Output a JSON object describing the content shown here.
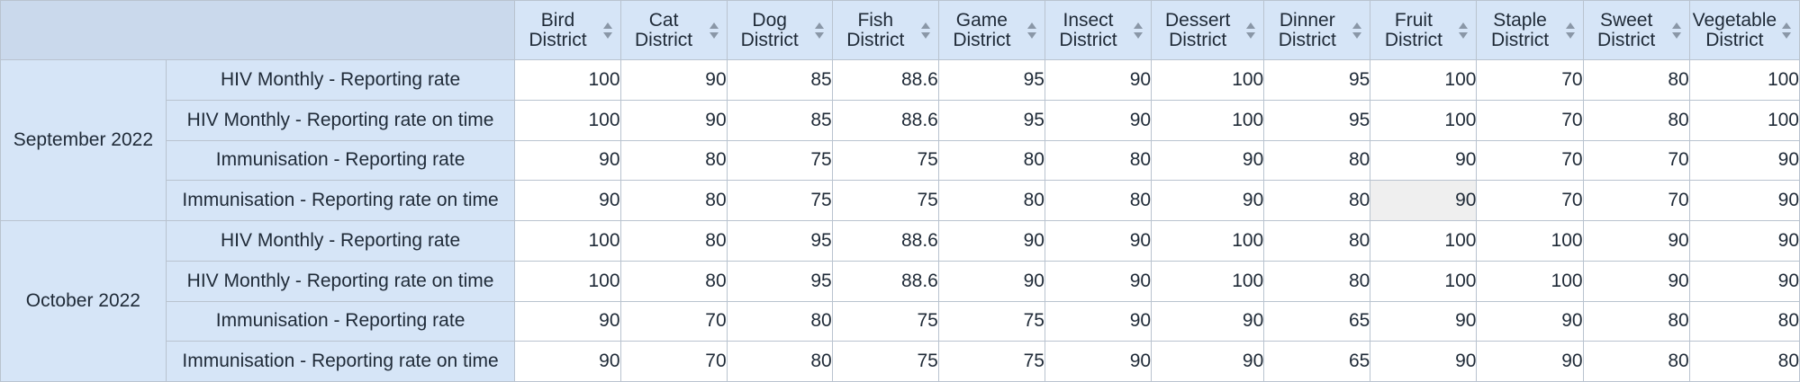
{
  "table": {
    "columns": [
      {
        "line1": "Bird",
        "line2": "District"
      },
      {
        "line1": "Cat",
        "line2": "District"
      },
      {
        "line1": "Dog",
        "line2": "District"
      },
      {
        "line1": "Fish",
        "line2": "District"
      },
      {
        "line1": "Game",
        "line2": "District"
      },
      {
        "line1": "Insect",
        "line2": "District"
      },
      {
        "line1": "Dessert",
        "line2": "District"
      },
      {
        "line1": "Dinner",
        "line2": "District"
      },
      {
        "line1": "Fruit",
        "line2": "District"
      },
      {
        "line1": "Staple",
        "line2": "District"
      },
      {
        "line1": "Sweet",
        "line2": "District"
      },
      {
        "line1": "Vegetable",
        "line2": "District"
      }
    ],
    "groups": [
      {
        "period": "September 2022",
        "rows": [
          {
            "indicator": "HIV Monthly - Reporting rate",
            "values": [
              "100",
              "90",
              "85",
              "88.6",
              "95",
              "90",
              "100",
              "95",
              "100",
              "70",
              "80",
              "100"
            ]
          },
          {
            "indicator": "HIV Monthly - Reporting rate on time",
            "values": [
              "100",
              "90",
              "85",
              "88.6",
              "95",
              "90",
              "100",
              "95",
              "100",
              "70",
              "80",
              "100"
            ]
          },
          {
            "indicator": "Immunisation - Reporting rate",
            "values": [
              "90",
              "80",
              "75",
              "75",
              "80",
              "80",
              "90",
              "80",
              "90",
              "70",
              "70",
              "90"
            ]
          },
          {
            "indicator": "Immunisation - Reporting rate on time",
            "values": [
              "90",
              "80",
              "75",
              "75",
              "80",
              "80",
              "90",
              "80",
              "90",
              "70",
              "70",
              "90"
            ]
          }
        ]
      },
      {
        "period": "October 2022",
        "rows": [
          {
            "indicator": "HIV Monthly - Reporting rate",
            "values": [
              "100",
              "80",
              "95",
              "88.6",
              "90",
              "90",
              "100",
              "80",
              "100",
              "100",
              "90",
              "90"
            ]
          },
          {
            "indicator": "HIV Monthly - Reporting rate on time",
            "values": [
              "100",
              "80",
              "95",
              "88.6",
              "90",
              "90",
              "100",
              "80",
              "100",
              "100",
              "90",
              "90"
            ]
          },
          {
            "indicator": "Immunisation - Reporting rate",
            "values": [
              "90",
              "70",
              "80",
              "75",
              "75",
              "90",
              "90",
              "65",
              "90",
              "90",
              "80",
              "80"
            ]
          },
          {
            "indicator": "Immunisation - Reporting rate on time",
            "values": [
              "90",
              "70",
              "80",
              "75",
              "75",
              "90",
              "90",
              "65",
              "90",
              "90",
              "80",
              "80"
            ]
          }
        ]
      }
    ]
  }
}
